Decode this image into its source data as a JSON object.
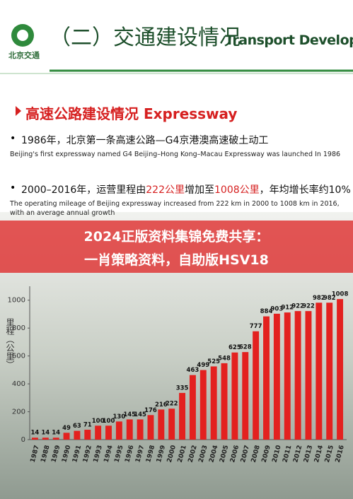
{
  "slide": {
    "logo": "北京交通",
    "title_cn": "（二）交通建设情况",
    "title_en": "Transport Development",
    "section": "高速公路建设情况 Expressway",
    "bullets": [
      {
        "cn": [
          "1986年，北京第一条高速公路—G4京港澳高速破土动工"
        ],
        "en": "Beijing's first expressway named G4 Beijing–Hong Kong–Macau Expressway was launched In 1986"
      },
      {
        "cn": [
          "2000–2016年，运营里程由",
          "222公里",
          "增加至",
          "1008公里",
          "，年均增长率约10%"
        ],
        "en": "The operating mileage of Beijing expressway increased from 222 km in 2000 to 1008 km in 2016, with an average annual growth"
      }
    ],
    "banner": [
      "2024正版资料集锦免费共享：",
      "一肖策略资料，自助版HSV18"
    ]
  },
  "chart_data": {
    "type": "bar",
    "y_label": "里程（公里）",
    "categories": [
      "1987",
      "1988",
      "1989",
      "1990",
      "1991",
      "1992",
      "1993",
      "1994",
      "1995",
      "1996",
      "1997",
      "1998",
      "1999",
      "2000",
      "2001",
      "2002",
      "2003",
      "2004",
      "2005",
      "2006",
      "2007",
      "2008",
      "2009",
      "2010",
      "2011",
      "2012",
      "2013",
      "2014",
      "2015",
      "2016"
    ],
    "values": [
      14,
      14,
      14,
      49,
      63,
      71,
      100,
      100,
      130,
      145,
      145,
      176,
      216,
      222,
      335,
      463,
      499,
      525,
      548,
      625,
      628,
      777,
      884,
      903,
      912,
      922,
      922,
      982,
      982,
      1008
    ],
    "color": "#e3211f",
    "ylim": [
      0,
      1100
    ],
    "yticks": [
      0,
      200,
      400,
      600,
      800,
      1000
    ],
    "grid": false
  }
}
